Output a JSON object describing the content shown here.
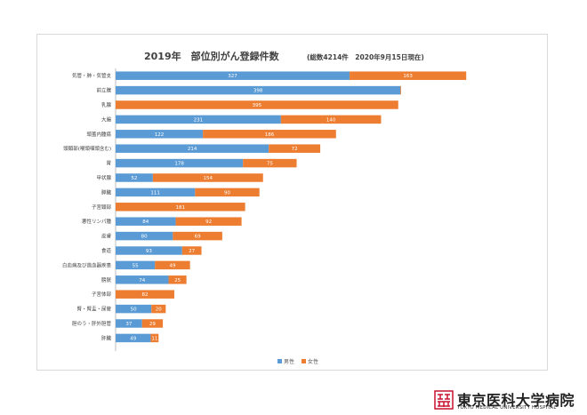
{
  "chart_data": {
    "type": "bar",
    "stacked": true,
    "orientation": "horizontal",
    "title": "2019年　部位別がん登録件数",
    "subtitle": "(総数4214件　2020年9月15日現在)",
    "categories": [
      "気管・肺・気管支",
      "前立腺",
      "乳腺",
      "大腸",
      "頭蓋内腫瘍",
      "頭頸部(喉頭咽頭含む)",
      "胃",
      "甲状腺",
      "膵臓",
      "子宮頸部",
      "悪性リンパ腫",
      "皮膚",
      "食道",
      "白血病及び造血器疾患",
      "膀胱",
      "子宮体部",
      "腎・腎盂・尿管",
      "胆のう・肝外胆管",
      "肝臓"
    ],
    "series": [
      {
        "name": "男性",
        "color": "#5b9bd5",
        "values": [
          327,
          398,
          0,
          231,
          122,
          214,
          178,
          52,
          111,
          0,
          84,
          80,
          93,
          55,
          74,
          0,
          50,
          37,
          49
        ]
      },
      {
        "name": "女性",
        "color": "#ed7d31",
        "values": [
          163,
          0,
          395,
          140,
          186,
          72,
          75,
          154,
          90,
          181,
          92,
          69,
          27,
          49,
          25,
          82,
          20,
          29,
          11
        ]
      }
    ],
    "grid": false,
    "legend_position": "bottom"
  },
  "logo": {
    "name": "東京医科大学病院",
    "subtitle": "TOKYO MEDICAL UNIVERSITY HOSPITAL"
  }
}
